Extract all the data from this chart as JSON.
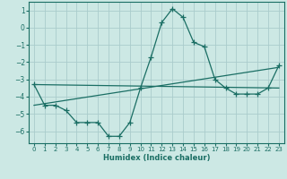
{
  "title": "",
  "xlabel": "Humidex (Indice chaleur)",
  "background_color": "#cce8e4",
  "grid_color": "#aacccc",
  "line_color": "#1a6e64",
  "marker": "+",
  "markersize": 4,
  "linewidth": 0.9,
  "xlim": [
    -0.5,
    23.5
  ],
  "ylim": [
    -6.7,
    1.5
  ],
  "yticks": [
    1,
    0,
    -1,
    -2,
    -3,
    -4,
    -5,
    -6
  ],
  "xticks": [
    0,
    1,
    2,
    3,
    4,
    5,
    6,
    7,
    8,
    9,
    10,
    11,
    12,
    13,
    14,
    15,
    16,
    17,
    18,
    19,
    20,
    21,
    22,
    23
  ],
  "xtick_labels": [
    "0",
    "1",
    "2",
    "3",
    "4",
    "5",
    "6",
    "7",
    "8",
    "9",
    "10",
    "11",
    "12",
    "13",
    "14",
    "15",
    "16",
    "17",
    "18",
    "19",
    "20",
    "21",
    "22",
    "23"
  ],
  "series1": [
    [
      0,
      -3.3
    ],
    [
      1,
      -4.5
    ],
    [
      2,
      -4.5
    ],
    [
      3,
      -4.8
    ],
    [
      4,
      -5.5
    ],
    [
      5,
      -5.5
    ],
    [
      6,
      -5.5
    ],
    [
      7,
      -6.3
    ],
    [
      8,
      -6.3
    ],
    [
      9,
      -5.5
    ],
    [
      10,
      -3.5
    ],
    [
      11,
      -1.7
    ],
    [
      12,
      0.3
    ],
    [
      13,
      1.1
    ],
    [
      14,
      0.6
    ],
    [
      15,
      -0.85
    ],
    [
      16,
      -1.1
    ],
    [
      17,
      -3.0
    ],
    [
      18,
      -3.5
    ],
    [
      19,
      -3.85
    ],
    [
      20,
      -3.85
    ],
    [
      21,
      -3.85
    ],
    [
      22,
      -3.5
    ],
    [
      23,
      -2.2
    ]
  ],
  "series2": [
    [
      0,
      -3.3
    ],
    [
      23,
      -3.5
    ]
  ],
  "series3": [
    [
      0,
      -4.5
    ],
    [
      23,
      -2.3
    ]
  ]
}
